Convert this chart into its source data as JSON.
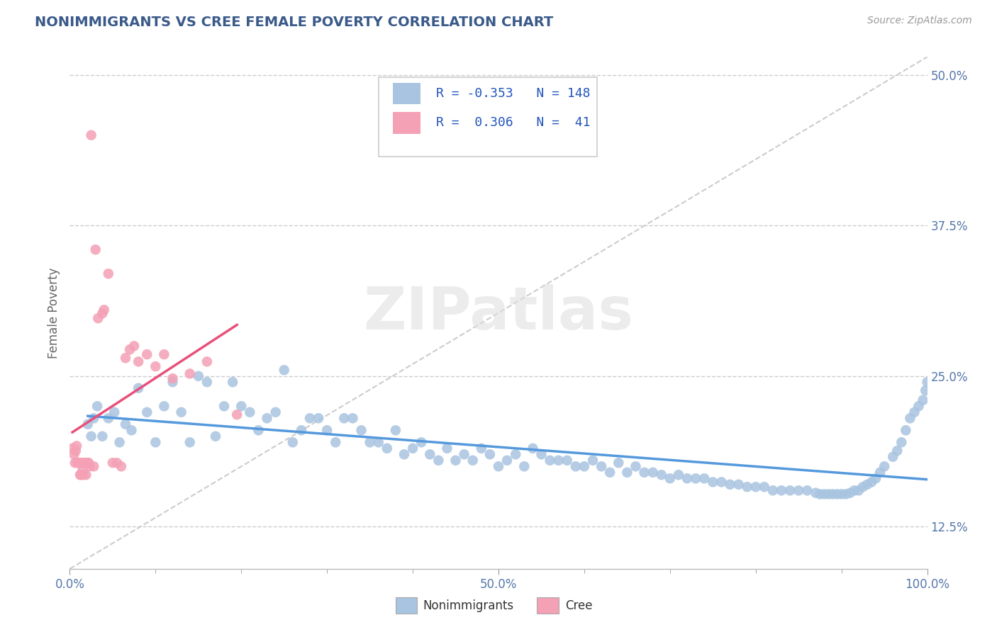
{
  "title": "NONIMMIGRANTS VS CREE FEMALE POVERTY CORRELATION CHART",
  "source_text": "Source: ZipAtlas.com",
  "ylabel": "Female Poverty",
  "watermark": "ZIPatlas",
  "xmin": 0.0,
  "xmax": 1.0,
  "ymin": 0.09,
  "ymax": 0.515,
  "yticks": [
    0.125,
    0.25,
    0.375,
    0.5
  ],
  "ytick_labels": [
    "12.5%",
    "25.0%",
    "37.5%",
    "50.0%"
  ],
  "xticks": [
    0.0,
    0.1,
    0.2,
    0.3,
    0.4,
    0.5,
    0.6,
    0.7,
    0.8,
    0.9,
    1.0
  ],
  "xtick_labels": [
    "0.0%",
    "",
    "",
    "",
    "",
    "50.0%",
    "",
    "",
    "",
    "",
    "100.0%"
  ],
  "blue_color": "#a8c4e0",
  "pink_color": "#f4a0b5",
  "blue_line_color": "#5599dd",
  "pink_line_color": "#e8507a",
  "title_color": "#3a5a8a",
  "axis_color": "#5577aa",
  "legend_text_color": "#2255bb",
  "nonimmigrants_x": [
    0.021,
    0.025,
    0.028,
    0.032,
    0.038,
    0.045,
    0.052,
    0.058,
    0.065,
    0.072,
    0.08,
    0.09,
    0.1,
    0.11,
    0.12,
    0.13,
    0.14,
    0.15,
    0.16,
    0.17,
    0.18,
    0.19,
    0.2,
    0.21,
    0.22,
    0.23,
    0.24,
    0.25,
    0.26,
    0.27,
    0.28,
    0.29,
    0.3,
    0.31,
    0.32,
    0.33,
    0.34,
    0.35,
    0.36,
    0.37,
    0.38,
    0.39,
    0.4,
    0.41,
    0.42,
    0.43,
    0.44,
    0.45,
    0.46,
    0.47,
    0.48,
    0.49,
    0.5,
    0.51,
    0.52,
    0.53,
    0.54,
    0.55,
    0.56,
    0.57,
    0.58,
    0.59,
    0.6,
    0.61,
    0.62,
    0.63,
    0.64,
    0.65,
    0.66,
    0.67,
    0.68,
    0.69,
    0.7,
    0.71,
    0.72,
    0.73,
    0.74,
    0.75,
    0.76,
    0.77,
    0.78,
    0.79,
    0.8,
    0.81,
    0.82,
    0.83,
    0.84,
    0.85,
    0.86,
    0.87,
    0.875,
    0.88,
    0.885,
    0.89,
    0.895,
    0.9,
    0.905,
    0.91,
    0.915,
    0.92,
    0.925,
    0.93,
    0.935,
    0.94,
    0.945,
    0.95,
    0.96,
    0.965,
    0.97,
    0.975,
    0.98,
    0.985,
    0.99,
    0.995,
    0.998,
    1.0
  ],
  "nonimmigrants_y": [
    0.21,
    0.2,
    0.215,
    0.225,
    0.2,
    0.215,
    0.22,
    0.195,
    0.21,
    0.205,
    0.24,
    0.22,
    0.195,
    0.225,
    0.245,
    0.22,
    0.195,
    0.25,
    0.245,
    0.2,
    0.225,
    0.245,
    0.225,
    0.22,
    0.205,
    0.215,
    0.22,
    0.255,
    0.195,
    0.205,
    0.215,
    0.215,
    0.205,
    0.195,
    0.215,
    0.215,
    0.205,
    0.195,
    0.195,
    0.19,
    0.205,
    0.185,
    0.19,
    0.195,
    0.185,
    0.18,
    0.19,
    0.18,
    0.185,
    0.18,
    0.19,
    0.185,
    0.175,
    0.18,
    0.185,
    0.175,
    0.19,
    0.185,
    0.18,
    0.18,
    0.18,
    0.175,
    0.175,
    0.18,
    0.175,
    0.17,
    0.178,
    0.17,
    0.175,
    0.17,
    0.17,
    0.168,
    0.165,
    0.168,
    0.165,
    0.165,
    0.165,
    0.162,
    0.162,
    0.16,
    0.16,
    0.158,
    0.158,
    0.158,
    0.155,
    0.155,
    0.155,
    0.155,
    0.155,
    0.153,
    0.152,
    0.152,
    0.152,
    0.152,
    0.152,
    0.152,
    0.152,
    0.153,
    0.155,
    0.155,
    0.158,
    0.16,
    0.162,
    0.165,
    0.17,
    0.175,
    0.183,
    0.188,
    0.195,
    0.205,
    0.215,
    0.22,
    0.225,
    0.23,
    0.238,
    0.245
  ],
  "cree_x": [
    0.003,
    0.005,
    0.006,
    0.007,
    0.008,
    0.009,
    0.01,
    0.011,
    0.012,
    0.013,
    0.014,
    0.015,
    0.016,
    0.017,
    0.018,
    0.019,
    0.02,
    0.021,
    0.022,
    0.023,
    0.025,
    0.028,
    0.03,
    0.033,
    0.038,
    0.04,
    0.045,
    0.05,
    0.055,
    0.06,
    0.065,
    0.07,
    0.075,
    0.08,
    0.09,
    0.1,
    0.11,
    0.12,
    0.14,
    0.16,
    0.195
  ],
  "cree_y": [
    0.19,
    0.185,
    0.178,
    0.188,
    0.192,
    0.178,
    0.178,
    0.178,
    0.168,
    0.168,
    0.178,
    0.172,
    0.168,
    0.178,
    0.178,
    0.168,
    0.178,
    0.178,
    0.178,
    0.175,
    0.45,
    0.175,
    0.355,
    0.298,
    0.302,
    0.305,
    0.335,
    0.178,
    0.178,
    0.175,
    0.265,
    0.272,
    0.275,
    0.262,
    0.268,
    0.258,
    0.268,
    0.248,
    0.252,
    0.262,
    0.218
  ]
}
